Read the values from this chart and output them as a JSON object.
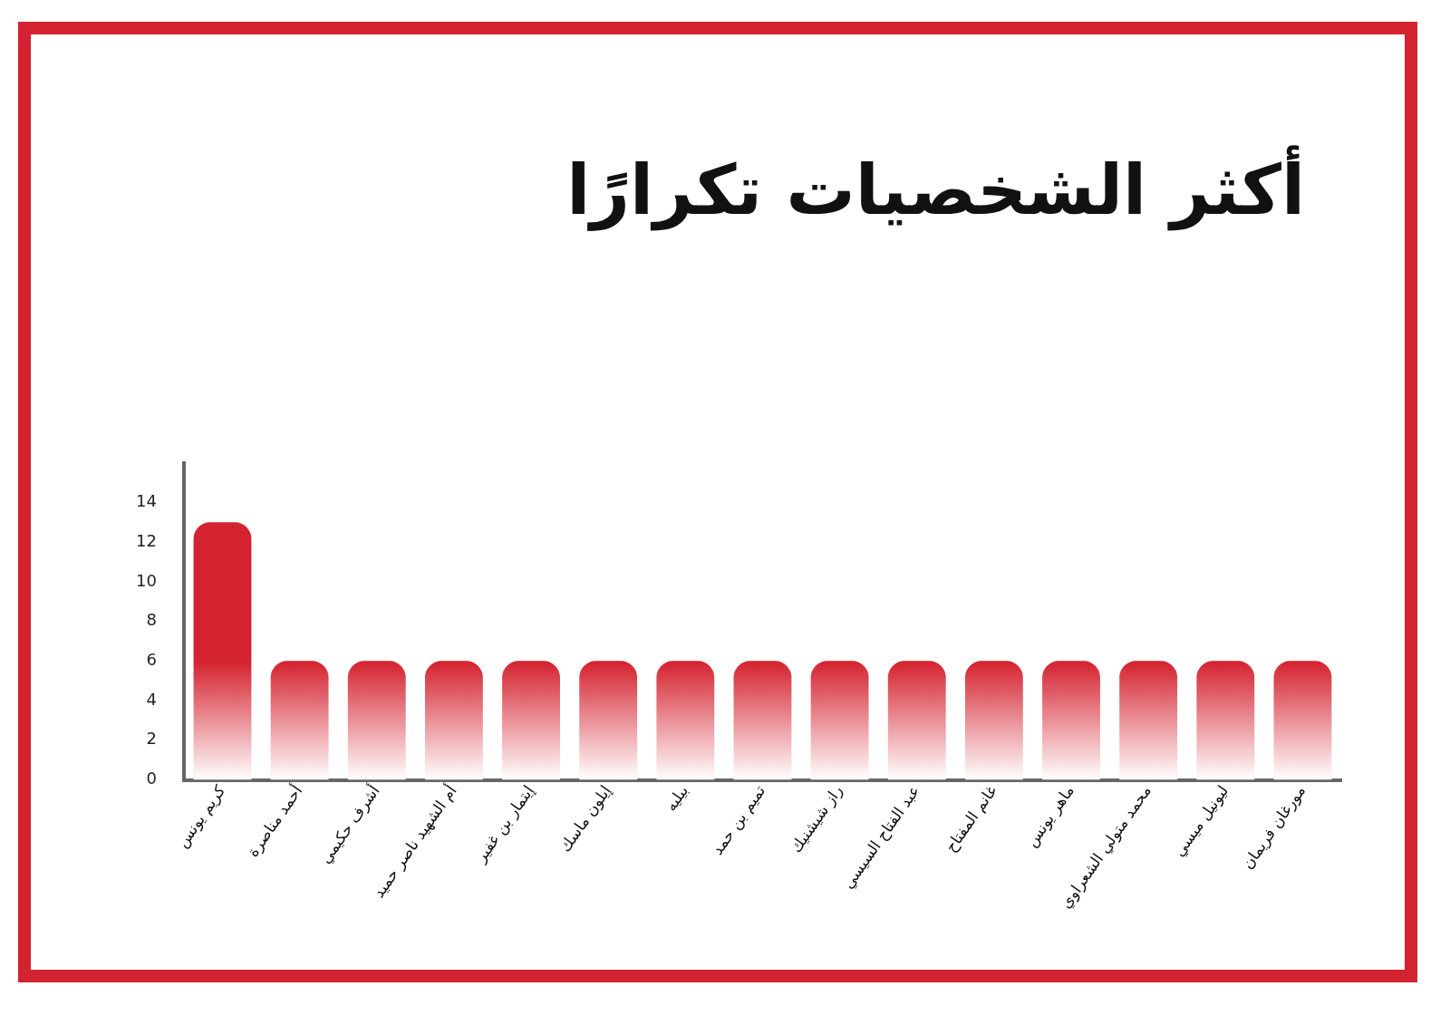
{
  "chart_data": {
    "type": "bar",
    "title": "أكثر الشخصيات تكرارًا",
    "categories": [
      "كريم يونس",
      "أحمد مناصرة",
      "أشرف حكيمي",
      "أم الشهيد ناصر حميد",
      "إيتمار بن غفير",
      "إيلون ماسك",
      "بيليه",
      "تميم بن حمد",
      "راز شيشنيك",
      "عبد الفتاح السيسي",
      "غانم المفتاح",
      "ماهر يونس",
      "محمد متولي الشعراوي",
      "ليونيل ميسي",
      "مورغان فريمان"
    ],
    "values": [
      13,
      6,
      6,
      6,
      6,
      6,
      6,
      6,
      6,
      6,
      6,
      6,
      6,
      6,
      6
    ],
    "color": "#d42330",
    "ylim": [
      0,
      16
    ],
    "yticks": [
      0,
      2,
      4,
      6,
      8,
      10,
      12,
      14
    ],
    "grid": false,
    "legend": false
  }
}
